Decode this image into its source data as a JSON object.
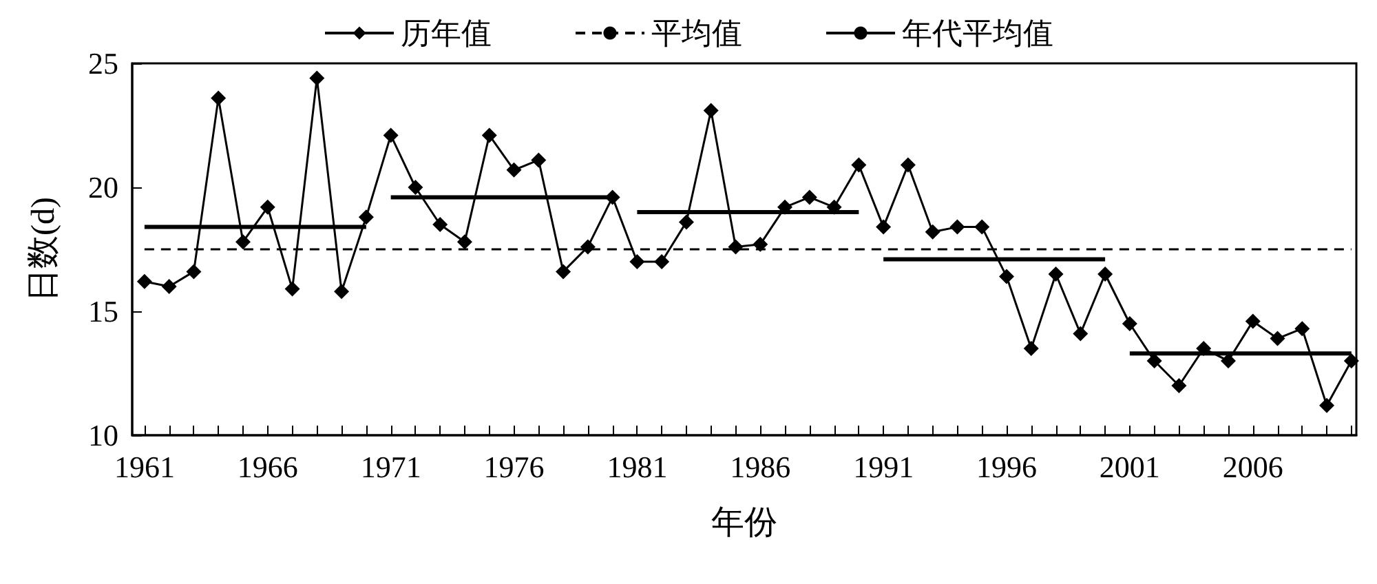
{
  "chart_data": {
    "type": "line",
    "xlabel": "年份",
    "ylabel": "日数(d)",
    "x": [
      1961,
      1962,
      1963,
      1964,
      1965,
      1966,
      1967,
      1968,
      1969,
      1970,
      1971,
      1972,
      1973,
      1974,
      1975,
      1976,
      1977,
      1978,
      1979,
      1980,
      1981,
      1982,
      1983,
      1984,
      1985,
      1986,
      1987,
      1988,
      1989,
      1990,
      1991,
      1992,
      1993,
      1994,
      1995,
      1996,
      1997,
      1998,
      1999,
      2000,
      2001,
      2002,
      2003,
      2004,
      2005,
      2006,
      2007,
      2008,
      2009,
      2010
    ],
    "series": [
      {
        "name": "历年值",
        "color": "#000000",
        "marker": "diamond",
        "line_style": "solid",
        "values": [
          16.2,
          16.0,
          16.6,
          23.6,
          17.8,
          19.2,
          15.9,
          24.4,
          15.8,
          18.8,
          22.1,
          20.0,
          18.5,
          17.8,
          22.1,
          20.7,
          21.1,
          16.6,
          17.6,
          19.6,
          17.0,
          17.0,
          18.6,
          23.1,
          17.6,
          17.7,
          19.2,
          19.6,
          19.2,
          20.9,
          18.4,
          20.9,
          18.2,
          18.4,
          18.4,
          16.4,
          13.5,
          16.5,
          14.1,
          16.5,
          14.5,
          13.0,
          12.0,
          13.5,
          13.0,
          14.6,
          13.9,
          14.3,
          11.2,
          13.0
        ]
      },
      {
        "name": "平均值",
        "color": "#000000",
        "marker": "none",
        "line_style": "dashed",
        "x": [
          1961,
          2010
        ],
        "values": [
          17.5,
          17.5
        ]
      },
      {
        "name": "年代平均值",
        "color": "#000000",
        "marker": "none",
        "line_style": "solid",
        "x": [
          1961,
          1970,
          1970.5,
          1971,
          1980,
          1980.5,
          1981,
          1990,
          1990.5,
          1991,
          2000,
          2000.5,
          2001,
          2010
        ],
        "values": [
          18.4,
          18.4,
          null,
          19.6,
          19.6,
          null,
          19.0,
          19.0,
          null,
          17.1,
          17.1,
          null,
          13.3,
          13.3
        ]
      }
    ],
    "xlim": [
      1960.5,
      2010.2
    ],
    "xticks": [
      1961,
      {
        "value": 1962,
        "label": null
      },
      {
        "value": 1963,
        "label": null
      },
      {
        "value": 1964,
        "label": null
      },
      {
        "value": 1965,
        "label": null
      },
      1966,
      {
        "value": 1967,
        "label": null
      },
      {
        "value": 1968,
        "label": null
      },
      {
        "value": 1969,
        "label": null
      },
      {
        "value": 1970,
        "label": null
      },
      1971,
      {
        "value": 1972,
        "label": null
      },
      {
        "value": 1973,
        "label": null
      },
      {
        "value": 1974,
        "label": null
      },
      {
        "value": 1975,
        "label": null
      },
      1976,
      {
        "value": 1977,
        "label": null
      },
      {
        "value": 1978,
        "label": null
      },
      {
        "value": 1979,
        "label": null
      },
      {
        "value": 1980,
        "label": null
      },
      1981,
      {
        "value": 1982,
        "label": null
      },
      {
        "value": 1983,
        "label": null
      },
      {
        "value": 1984,
        "label": null
      },
      {
        "value": 1985,
        "label": null
      },
      1986,
      {
        "value": 1987,
        "label": null
      },
      {
        "value": 1988,
        "label": null
      },
      {
        "value": 1989,
        "label": null
      },
      {
        "value": 1990,
        "label": null
      },
      1991,
      {
        "value": 1992,
        "label": null
      },
      {
        "value": 1993,
        "label": null
      },
      {
        "value": 1994,
        "label": null
      },
      {
        "value": 1995,
        "label": null
      },
      1996,
      {
        "value": 1997,
        "label": null
      },
      {
        "value": 1998,
        "label": null
      },
      {
        "value": 1999,
        "label": null
      },
      {
        "value": 2000,
        "label": null
      },
      2001,
      {
        "value": 2002,
        "label": null
      },
      {
        "value": 2003,
        "label": null
      },
      {
        "value": 2004,
        "label": null
      },
      {
        "value": 2005,
        "label": null
      },
      2006,
      {
        "value": 2007,
        "label": null
      },
      {
        "value": 2008,
        "label": null
      },
      {
        "value": 2009,
        "label": null
      },
      {
        "value": 2010,
        "label": null
      }
    ],
    "ylim": [
      10,
      25
    ],
    "yticks": [
      10,
      15,
      20,
      25
    ],
    "grid": false,
    "legend": "top"
  }
}
